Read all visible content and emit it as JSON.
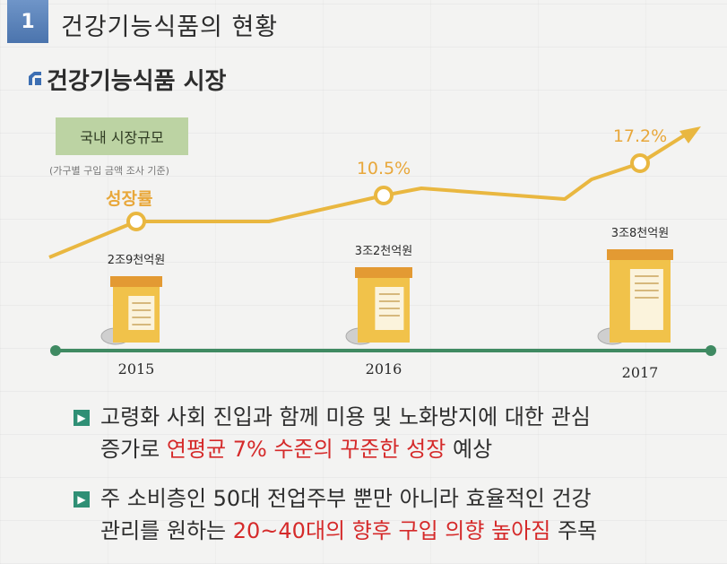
{
  "header": {
    "number": "1",
    "title": "건강기능식품의 현황"
  },
  "section": {
    "title": "건강기능식품 시장"
  },
  "chart_panel": {
    "label": "국내 시장규모",
    "note": "(가구별 구입 금액 조사 기준)",
    "growth_label": "성장률"
  },
  "chart_data": {
    "type": "line",
    "x": [
      "2015",
      "2016",
      "2017"
    ],
    "series": [
      {
        "name": "성장률",
        "values": [
          null,
          10.5,
          17.2
        ],
        "labels": [
          "",
          "10.5%",
          "17.2%"
        ]
      }
    ],
    "market_size": [
      "2조9천억원",
      "3조2천억원",
      "3조8천억원"
    ],
    "colors": {
      "line": "#e9b740",
      "axis": "#3f8a62",
      "bottle": "#e39a33",
      "label": "#e8a73a"
    }
  },
  "bullets": [
    {
      "line1": "고령화 사회 진입과 함께 미용 및 노화방지에 대한 관심",
      "line2_pre": "증가로 ",
      "line2_hl": "연평균 7% 수준의 꾸준한 성장",
      "line2_post": " 예상"
    },
    {
      "line1": "주 소비층인 50대 전업주부 뿐만 아니라 효율적인 건강",
      "line2_pre": "관리를 원하는 ",
      "line2_hl": "20~40대의 향후 구입 의향 높아짐",
      "line2_post": " 주목"
    }
  ]
}
